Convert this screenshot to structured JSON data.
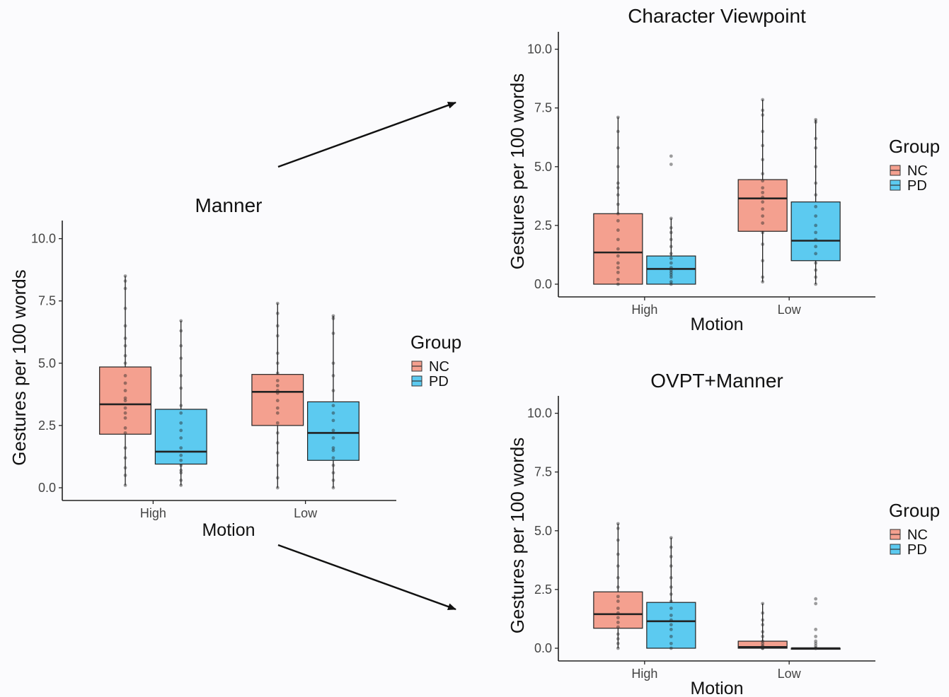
{
  "colors": {
    "NC": "#f4a08f",
    "PD": "#5ccaf0",
    "background": "#fbfbfd"
  },
  "chart_data": [
    {
      "type": "box",
      "title": "Manner",
      "xlabel": "Motion",
      "ylabel": "Gestures per 100 words",
      "categories": [
        "High",
        "Low"
      ],
      "yticks": [
        "0.0",
        "2.5",
        "5.0",
        "7.5",
        "10.0"
      ],
      "ylim": [
        0,
        10.5
      ],
      "legend": {
        "title": "Group",
        "position": "right",
        "items": [
          "NC",
          "PD"
        ]
      },
      "series": [
        {
          "name": "NC",
          "boxes": [
            {
              "category": "High",
              "min": 0.1,
              "q1": 2.15,
              "median": 3.35,
              "q3": 4.85,
              "max": 8.5,
              "points": [
                0.1,
                0.5,
                0.8,
                1.2,
                1.6,
                2.2,
                2.4,
                2.8,
                3.0,
                3.2,
                3.5,
                3.6,
                3.9,
                4.2,
                4.5,
                5.0,
                5.3,
                5.7,
                6.0,
                6.5,
                7.2,
                8.0,
                8.3,
                8.5
              ]
            },
            {
              "category": "Low",
              "min": 0.0,
              "q1": 2.5,
              "median": 3.85,
              "q3": 4.55,
              "max": 7.4,
              "points": [
                0.0,
                0.4,
                0.9,
                1.4,
                1.8,
                2.2,
                2.6,
                3.0,
                3.2,
                3.5,
                3.8,
                3.9,
                4.1,
                4.3,
                4.6,
                5.0,
                5.4,
                6.1,
                6.5,
                7.0,
                7.4
              ]
            }
          ]
        },
        {
          "name": "PD",
          "boxes": [
            {
              "category": "High",
              "min": 0.1,
              "q1": 0.95,
              "median": 1.45,
              "q3": 3.15,
              "max": 6.7,
              "points": [
                0.1,
                0.3,
                0.6,
                0.7,
                0.9,
                1.1,
                1.3,
                1.6,
                2.0,
                2.3,
                2.6,
                3.0,
                3.3,
                4.0,
                4.5,
                5.2,
                5.7,
                6.3,
                6.7
              ]
            },
            {
              "category": "Low",
              "min": 0.0,
              "q1": 1.1,
              "median": 2.2,
              "q3": 3.45,
              "max": 6.9,
              "points": [
                0.0,
                0.3,
                0.6,
                0.9,
                1.2,
                1.5,
                1.6,
                2.0,
                2.3,
                2.7,
                3.0,
                3.3,
                3.9,
                4.5,
                5.0,
                6.2,
                6.8,
                6.9
              ]
            }
          ]
        }
      ]
    },
    {
      "type": "box",
      "title": "Character Viewpoint",
      "xlabel": "Motion",
      "ylabel": "Gestures per 100 words",
      "categories": [
        "High",
        "Low"
      ],
      "yticks": [
        "0.0",
        "2.5",
        "5.0",
        "7.5",
        "10.0"
      ],
      "ylim": [
        0,
        10.5
      ],
      "legend": {
        "title": "Group",
        "position": "right",
        "items": [
          "NC",
          "PD"
        ]
      },
      "series": [
        {
          "name": "NC",
          "boxes": [
            {
              "category": "High",
              "min": 0.0,
              "q1": 0.0,
              "median": 1.35,
              "q3": 3.0,
              "max": 7.1,
              "points": [
                0.0,
                0.2,
                0.5,
                0.7,
                0.9,
                1.2,
                1.5,
                1.9,
                2.3,
                2.7,
                3.0,
                3.4,
                3.8,
                4.1,
                4.3,
                5.0,
                5.8,
                6.5,
                7.1
              ]
            },
            {
              "category": "Low",
              "min": 0.1,
              "q1": 2.25,
              "median": 3.65,
              "q3": 4.45,
              "max": 7.85,
              "points": [
                0.1,
                0.3,
                1.0,
                1.7,
                2.2,
                2.6,
                2.9,
                3.2,
                3.5,
                3.7,
                3.9,
                4.1,
                4.4,
                4.7,
                5.3,
                5.9,
                6.5,
                7.2,
                7.4,
                7.85
              ]
            }
          ]
        },
        {
          "name": "PD",
          "boxes": [
            {
              "category": "High",
              "min": 0.0,
              "q1": 0.0,
              "median": 0.65,
              "q3": 1.2,
              "max": 2.8,
              "points": [
                0.0,
                0.1,
                0.3,
                0.4,
                0.5,
                0.6,
                0.7,
                0.9,
                1.1,
                1.3,
                1.6,
                1.9,
                2.2,
                2.4,
                2.8,
                5.1,
                5.45
              ]
            },
            {
              "category": "Low",
              "min": 0.0,
              "q1": 1.0,
              "median": 1.85,
              "q3": 3.5,
              "max": 7.0,
              "points": [
                0.0,
                0.3,
                0.6,
                0.9,
                1.3,
                1.6,
                1.9,
                2.2,
                2.5,
                2.9,
                3.3,
                3.8,
                4.3,
                5.0,
                5.8,
                6.2,
                6.9,
                7.0
              ]
            }
          ]
        }
      ]
    },
    {
      "type": "box",
      "title": "OVPT+Manner",
      "xlabel": "Motion",
      "ylabel": "Gestures per 100 words",
      "categories": [
        "High",
        "Low"
      ],
      "yticks": [
        "0.0",
        "2.5",
        "5.0",
        "7.5",
        "10.0"
      ],
      "ylim": [
        0,
        10.5
      ],
      "legend": {
        "title": "Group",
        "position": "right",
        "items": [
          "NC",
          "PD"
        ]
      },
      "series": [
        {
          "name": "NC",
          "boxes": [
            {
              "category": "High",
              "min": 0.0,
              "q1": 0.85,
              "median": 1.45,
              "q3": 2.4,
              "max": 5.3,
              "points": [
                0.0,
                0.2,
                0.4,
                0.6,
                0.9,
                1.1,
                1.3,
                1.5,
                1.7,
                2.0,
                2.2,
                2.6,
                3.0,
                3.5,
                4.0,
                4.6,
                5.1,
                5.3
              ]
            },
            {
              "category": "Low",
              "min": 0.0,
              "q1": 0.0,
              "median": 0.05,
              "q3": 0.3,
              "max": 1.9,
              "points": [
                0.0,
                0.0,
                0.05,
                0.1,
                0.2,
                0.3,
                0.5,
                0.7,
                1.0,
                1.2,
                1.5,
                1.9
              ]
            }
          ]
        },
        {
          "name": "PD",
          "boxes": [
            {
              "category": "High",
              "min": 0.0,
              "q1": 0.0,
              "median": 1.15,
              "q3": 1.95,
              "max": 4.7,
              "points": [
                0.0,
                0.2,
                0.5,
                0.8,
                1.0,
                1.2,
                1.4,
                1.7,
                2.0,
                2.3,
                2.6,
                3.0,
                3.5,
                3.9,
                4.3,
                4.7
              ]
            },
            {
              "category": "Low",
              "min": 0.0,
              "q1": 0.0,
              "median": 0.0,
              "q3": 0.0,
              "max": 0.0,
              "points": [
                0.0,
                0.0,
                0.1,
                0.2,
                0.3,
                0.5,
                0.8,
                1.9,
                2.1
              ]
            }
          ]
        }
      ]
    }
  ]
}
